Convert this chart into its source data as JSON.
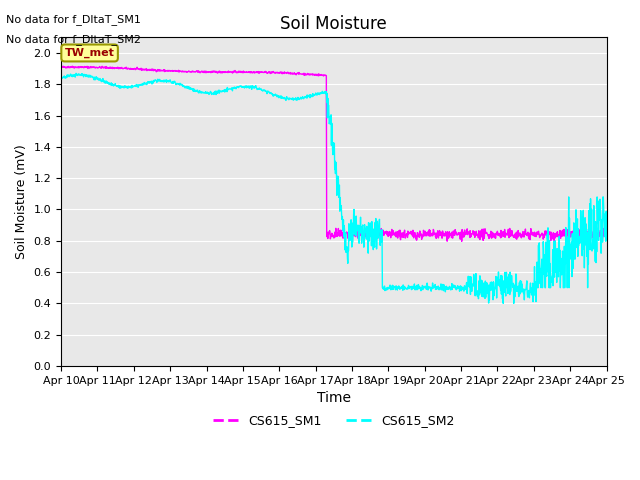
{
  "title": "Soil Moisture",
  "xlabel": "Time",
  "ylabel": "Soil Moisture (mV)",
  "no_data_text1": "No data for f_DltaT_SM1",
  "no_data_text2": "No data for f_DltaT_SM2",
  "legend_label1": "CS615_SM1",
  "legend_label2": "CS615_SM2",
  "color_sm1": "#FF00FF",
  "color_sm2": "#00FFFF",
  "ylim": [
    0.0,
    2.1
  ],
  "yticks": [
    0.0,
    0.2,
    0.4,
    0.6,
    0.8,
    1.0,
    1.2,
    1.4,
    1.6,
    1.8,
    2.0
  ],
  "background_color": "#E8E8E8",
  "figure_background": "#FFFFFF",
  "tw_met_box_color": "#FFFF99",
  "tw_met_text_color": "#990000",
  "tw_met_border_color": "#999900",
  "start_day": 10,
  "end_day": 25,
  "drop_day": 17.3
}
